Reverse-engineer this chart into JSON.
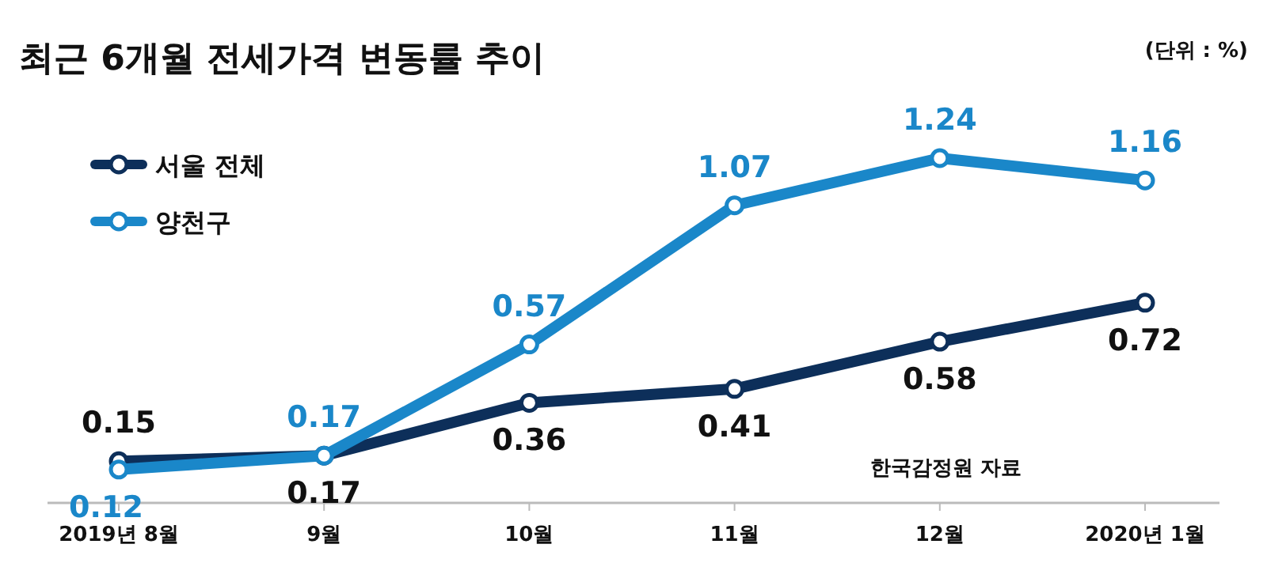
{
  "chart_data": {
    "type": "line",
    "title": "최근 6개월 전세가격 변동률 추이",
    "subtitle": "(단위 : %)",
    "categories": [
      "2019년 8월",
      "9월",
      "10월",
      "11월",
      "12월",
      "2020년 1월"
    ],
    "series": [
      {
        "name": "서울 전체",
        "color": "#0d2f5a",
        "values": [
          0.15,
          0.17,
          0.36,
          0.41,
          0.58,
          0.72
        ]
      },
      {
        "name": "양천구",
        "color": "#1a87c9",
        "values": [
          0.12,
          0.17,
          0.57,
          1.07,
          1.24,
          1.16
        ]
      }
    ],
    "data_labels": true,
    "marker": "circle",
    "line_style": "solid",
    "legend": "top left",
    "annotations": [
      "한국감정원 자료"
    ]
  }
}
